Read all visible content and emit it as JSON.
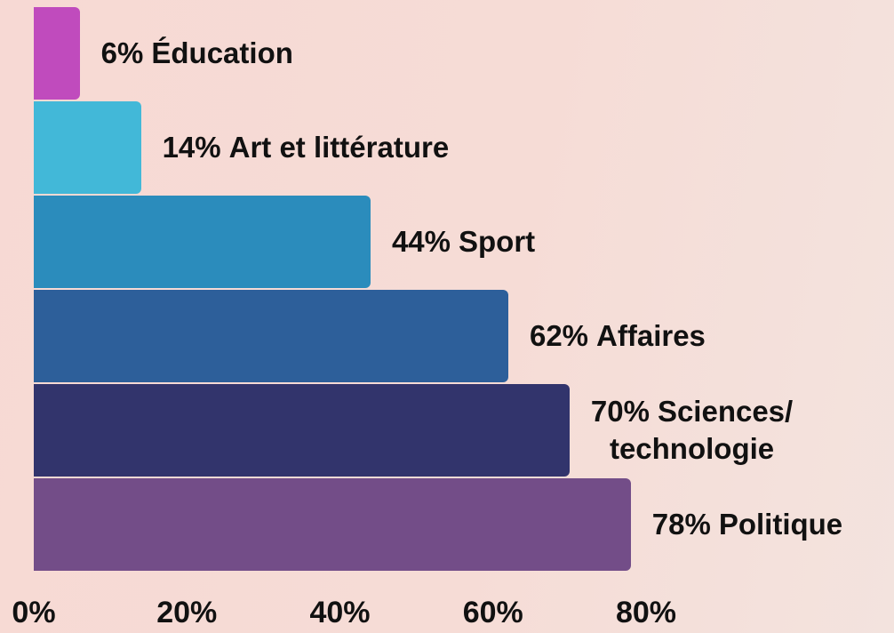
{
  "chart_data": {
    "type": "bar",
    "orientation": "horizontal",
    "categories": [
      "Éducation",
      "Art et littérature",
      "Sport",
      "Affaires",
      "Sciences/\ntechnologie",
      "Politique"
    ],
    "values": [
      6,
      14,
      44,
      62,
      70,
      78
    ],
    "value_labels": [
      "6%",
      "14%",
      "44%",
      "62%",
      "70%",
      "78%"
    ],
    "colors": [
      "#c04bbd",
      "#42b8d8",
      "#2b8cbc",
      "#2d5f9a",
      "#32346c",
      "#734d88"
    ],
    "xlim": [
      0,
      80
    ],
    "xticks": [
      {
        "value": 0,
        "label": "0%"
      },
      {
        "value": 20,
        "label": "20%"
      },
      {
        "value": 40,
        "label": "40%"
      },
      {
        "value": 60,
        "label": "60%"
      },
      {
        "value": 80,
        "label": "80%"
      }
    ]
  }
}
